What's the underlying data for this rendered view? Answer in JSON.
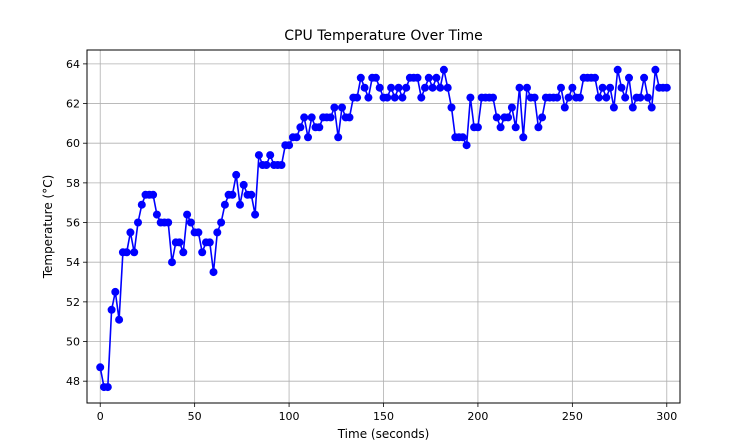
{
  "chart_data": {
    "type": "line",
    "title": "CPU Temperature Over Time",
    "xlabel": "Time (seconds)",
    "ylabel": "Temperature (°C)",
    "xlim": [
      -7,
      307
    ],
    "ylim": [
      46.9,
      64.7
    ],
    "xticks": [
      0,
      50,
      100,
      150,
      200,
      250,
      300
    ],
    "yticks": [
      48,
      50,
      52,
      54,
      56,
      58,
      60,
      62,
      64
    ],
    "grid": true,
    "series": [
      {
        "color": "#0000ff",
        "marker": "circle",
        "x": [
          0,
          2,
          4,
          6,
          8,
          10,
          12,
          14,
          16,
          18,
          20,
          22,
          24,
          26,
          28,
          30,
          32,
          34,
          36,
          38,
          40,
          42,
          44,
          46,
          48,
          50,
          52,
          54,
          56,
          58,
          60,
          62,
          64,
          66,
          68,
          70,
          72,
          74,
          76,
          78,
          80,
          82,
          84,
          86,
          88,
          90,
          92,
          94,
          96,
          98,
          100,
          102,
          104,
          106,
          108,
          110,
          112,
          114,
          116,
          118,
          120,
          122,
          124,
          126,
          128,
          130,
          132,
          134,
          136,
          138,
          140,
          142,
          144,
          146,
          148,
          150,
          152,
          154,
          156,
          158,
          160,
          162,
          164,
          166,
          168,
          170,
          172,
          174,
          176,
          178,
          180,
          182,
          184,
          186,
          188,
          190,
          192,
          194,
          196,
          198,
          200,
          202,
          204,
          206,
          208,
          210,
          212,
          214,
          216,
          218,
          220,
          222,
          224,
          226,
          228,
          230,
          232,
          234,
          236,
          238,
          240,
          242,
          244,
          246,
          248,
          250,
          252,
          254,
          256,
          258,
          260,
          262,
          264,
          266,
          268,
          270,
          272,
          274,
          276,
          278,
          280,
          282,
          284,
          286,
          288,
          290,
          292,
          294,
          296,
          298,
          300
        ],
        "y": [
          48.7,
          47.7,
          47.7,
          51.6,
          52.5,
          51.1,
          54.5,
          54.5,
          55.5,
          54.5,
          56.0,
          56.9,
          57.4,
          57.4,
          57.4,
          56.4,
          56.0,
          56.0,
          56.0,
          54.0,
          55.0,
          55.0,
          54.5,
          56.4,
          56.0,
          55.5,
          55.5,
          54.5,
          55.0,
          55.0,
          53.5,
          55.5,
          56.0,
          56.9,
          57.4,
          57.4,
          58.4,
          56.9,
          57.9,
          57.4,
          57.4,
          56.4,
          59.4,
          58.9,
          58.9,
          59.4,
          58.9,
          58.9,
          58.9,
          59.9,
          59.9,
          60.3,
          60.3,
          60.8,
          61.3,
          60.3,
          61.3,
          60.8,
          60.8,
          61.3,
          61.3,
          61.3,
          61.8,
          60.3,
          61.8,
          61.3,
          61.3,
          62.3,
          62.3,
          63.3,
          62.8,
          62.3,
          63.3,
          63.3,
          62.8,
          62.3,
          62.3,
          62.8,
          62.3,
          62.8,
          62.3,
          62.8,
          63.3,
          63.3,
          63.3,
          62.3,
          62.8,
          63.3,
          62.8,
          63.3,
          62.8,
          63.7,
          62.8,
          61.8,
          60.3,
          60.3,
          60.3,
          59.9,
          62.3,
          60.8,
          60.8,
          62.3,
          62.3,
          62.3,
          62.3,
          61.3,
          60.8,
          61.3,
          61.3,
          61.8,
          60.8,
          62.8,
          60.3,
          62.8,
          62.3,
          62.3,
          60.8,
          61.3,
          62.3,
          62.3,
          62.3,
          62.3,
          62.8,
          61.8,
          62.3,
          62.8,
          62.3,
          62.3,
          63.3,
          63.3,
          63.3,
          63.3,
          62.3,
          62.8,
          62.3,
          62.8,
          61.8,
          63.7,
          62.8,
          62.3,
          63.3,
          61.8,
          62.3,
          62.3,
          63.3,
          62.3,
          61.8,
          63.7,
          62.8,
          62.8,
          62.8
        ]
      }
    ]
  }
}
